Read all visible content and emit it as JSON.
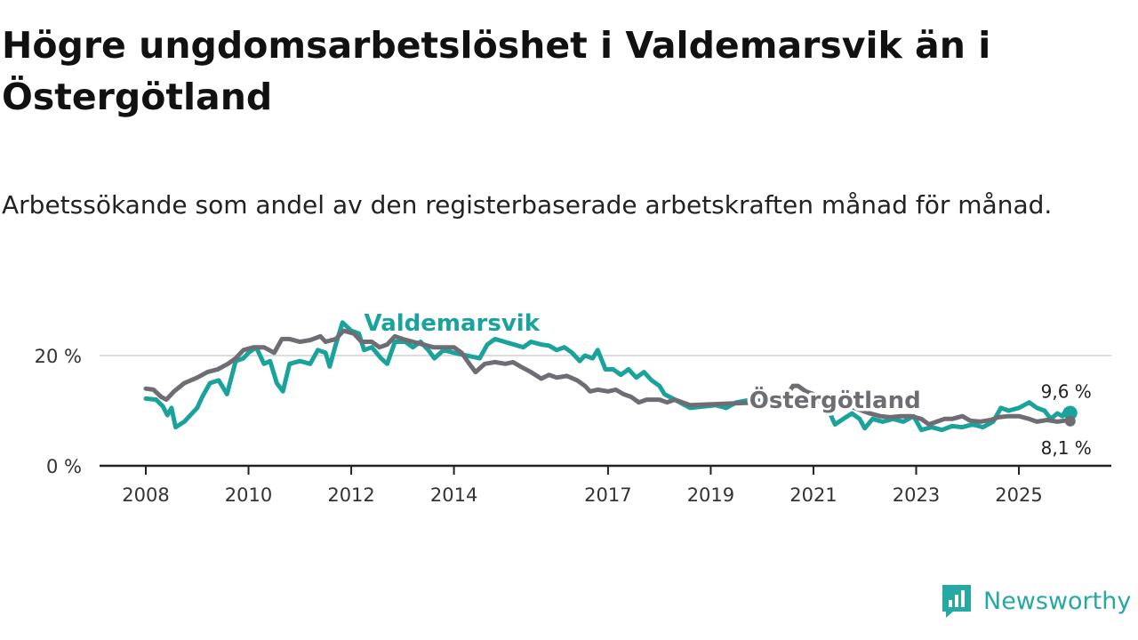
{
  "title": "Högre ungdomsarbetslöshet i Valdemarsvik än i Östergötland",
  "subtitle": "Arbetssökande som andel av den registerbaserade arbetskraften månad för månad.",
  "brand": {
    "name": "Newsworthy",
    "icon": "newsworthy-logo-icon"
  },
  "colors": {
    "valdemarsvik": "#1aa39c",
    "ostergotland": "#6e6d73",
    "axis": "#222222",
    "grid": "#dddddd"
  },
  "chart_data": {
    "type": "line",
    "title": "Högre ungdomsarbetslöshet i Valdemarsvik än i Östergötland",
    "xlabel": "",
    "ylabel": "",
    "xlim": [
      2008.0,
      2026.8
    ],
    "ylim": [
      0,
      30
    ],
    "y_ticks": [
      {
        "value": 0,
        "label": "0 %"
      },
      {
        "value": 20,
        "label": "20 %"
      }
    ],
    "x_ticks": [
      {
        "value": 2008,
        "label": "2008"
      },
      {
        "value": 2010,
        "label": "2010"
      },
      {
        "value": 2012,
        "label": "2012"
      },
      {
        "value": 2014,
        "label": "2014"
      },
      {
        "value": 2017,
        "label": "2017"
      },
      {
        "value": 2019,
        "label": "2019"
      },
      {
        "value": 2021,
        "label": "2021"
      },
      {
        "value": 2023,
        "label": "2023"
      },
      {
        "value": 2025,
        "label": "2025"
      }
    ],
    "grid": "horizontal",
    "series": [
      {
        "name": "Valdemarsvik",
        "color": "#1aa39c",
        "label_x": 2012.25,
        "label_y": 24.5,
        "end_label": "9,6 %",
        "points": [
          [
            2008.0,
            12.2
          ],
          [
            2008.2,
            12.0
          ],
          [
            2008.33,
            10.8
          ],
          [
            2008.42,
            9.2
          ],
          [
            2008.5,
            10.5
          ],
          [
            2008.58,
            7.0
          ],
          [
            2008.75,
            8.0
          ],
          [
            2008.9,
            9.5
          ],
          [
            2009.0,
            10.5
          ],
          [
            2009.1,
            12.5
          ],
          [
            2009.25,
            15.0
          ],
          [
            2009.42,
            15.5
          ],
          [
            2009.58,
            13.0
          ],
          [
            2009.75,
            19.0
          ],
          [
            2009.9,
            19.5
          ],
          [
            2010.0,
            20.5
          ],
          [
            2010.15,
            21.5
          ],
          [
            2010.3,
            18.5
          ],
          [
            2010.42,
            19.0
          ],
          [
            2010.55,
            15.0
          ],
          [
            2010.67,
            13.5
          ],
          [
            2010.8,
            18.5
          ],
          [
            2011.0,
            19.0
          ],
          [
            2011.2,
            18.5
          ],
          [
            2011.35,
            21.0
          ],
          [
            2011.5,
            20.5
          ],
          [
            2011.58,
            18.0
          ],
          [
            2011.7,
            22.0
          ],
          [
            2011.83,
            26.0
          ],
          [
            2012.0,
            24.5
          ],
          [
            2012.15,
            24.0
          ],
          [
            2012.25,
            21.0
          ],
          [
            2012.4,
            21.5
          ],
          [
            2012.58,
            19.5
          ],
          [
            2012.7,
            18.5
          ],
          [
            2012.85,
            22.5
          ],
          [
            2013.05,
            22.5
          ],
          [
            2013.2,
            21.5
          ],
          [
            2013.35,
            22.5
          ],
          [
            2013.5,
            21.0
          ],
          [
            2013.62,
            19.5
          ],
          [
            2013.8,
            21.0
          ],
          [
            2014.0,
            20.5
          ],
          [
            2014.5,
            19.5
          ],
          [
            2014.65,
            22.0
          ],
          [
            2014.8,
            23.0
          ],
          [
            2015.35,
            21.5
          ],
          [
            2015.5,
            22.5
          ],
          [
            2015.7,
            22.0
          ],
          [
            2015.85,
            21.8
          ],
          [
            2016.0,
            21.0
          ],
          [
            2016.15,
            21.5
          ],
          [
            2016.3,
            20.5
          ],
          [
            2016.45,
            19.0
          ],
          [
            2016.55,
            20.0
          ],
          [
            2016.7,
            19.5
          ],
          [
            2016.8,
            21.0
          ],
          [
            2016.95,
            17.5
          ],
          [
            2017.1,
            17.5
          ],
          [
            2017.25,
            16.5
          ],
          [
            2017.4,
            17.5
          ],
          [
            2017.55,
            16.0
          ],
          [
            2017.7,
            17.0
          ],
          [
            2017.85,
            15.5
          ],
          [
            2018.0,
            14.5
          ],
          [
            2018.1,
            13.0
          ],
          [
            2018.6,
            10.5
          ],
          [
            2019.1,
            11.0
          ],
          [
            2019.3,
            10.5
          ],
          [
            2019.5,
            11.5
          ],
          [
            2019.8,
            12.0
          ],
          [
            2020.2,
            11.5
          ],
          [
            2020.5,
            12.0
          ],
          [
            2020.9,
            11.0
          ],
          [
            2021.2,
            12.0
          ],
          [
            2021.42,
            7.5
          ],
          [
            2021.58,
            8.5
          ],
          [
            2021.75,
            9.5
          ],
          [
            2021.9,
            8.5
          ],
          [
            2022.0,
            6.8
          ],
          [
            2022.15,
            8.5
          ],
          [
            2022.35,
            8.0
          ],
          [
            2022.55,
            8.5
          ],
          [
            2022.75,
            8.0
          ],
          [
            2022.95,
            9.0
          ],
          [
            2023.1,
            6.5
          ],
          [
            2023.3,
            7.0
          ],
          [
            2023.5,
            6.5
          ],
          [
            2023.7,
            7.2
          ],
          [
            2023.9,
            7.0
          ],
          [
            2024.1,
            7.5
          ],
          [
            2024.3,
            7.0
          ],
          [
            2024.5,
            8.0
          ],
          [
            2024.65,
            10.5
          ],
          [
            2024.8,
            10.0
          ],
          [
            2025.0,
            10.5
          ],
          [
            2025.2,
            11.5
          ],
          [
            2025.35,
            10.5
          ],
          [
            2025.5,
            10.0
          ],
          [
            2025.62,
            8.5
          ],
          [
            2025.75,
            9.5
          ],
          [
            2025.85,
            9.0
          ],
          [
            2025.92,
            10.2
          ],
          [
            2026.0,
            9.6
          ]
        ]
      },
      {
        "name": "Östergötland",
        "color": "#6e6d73",
        "label_x": 2019.75,
        "label_y": 10.5,
        "end_label": "8,1 %",
        "points": [
          [
            2008.0,
            14.0
          ],
          [
            2008.15,
            13.8
          ],
          [
            2008.3,
            12.5
          ],
          [
            2008.4,
            12.0
          ],
          [
            2008.55,
            13.5
          ],
          [
            2008.75,
            15.0
          ],
          [
            2009.0,
            16.0
          ],
          [
            2009.2,
            17.0
          ],
          [
            2009.4,
            17.5
          ],
          [
            2009.6,
            18.5
          ],
          [
            2009.75,
            19.5
          ],
          [
            2009.9,
            21.0
          ],
          [
            2010.1,
            21.5
          ],
          [
            2010.3,
            21.5
          ],
          [
            2010.5,
            20.5
          ],
          [
            2010.65,
            23.0
          ],
          [
            2010.8,
            23.0
          ],
          [
            2011.0,
            22.5
          ],
          [
            2011.2,
            22.8
          ],
          [
            2011.4,
            23.5
          ],
          [
            2011.5,
            22.5
          ],
          [
            2011.7,
            23.0
          ],
          [
            2011.85,
            24.5
          ],
          [
            2012.05,
            24.0
          ],
          [
            2012.2,
            22.5
          ],
          [
            2012.4,
            22.5
          ],
          [
            2012.55,
            21.5
          ],
          [
            2012.7,
            22.0
          ],
          [
            2012.85,
            23.5
          ],
          [
            2013.0,
            23.0
          ],
          [
            2013.2,
            22.5
          ],
          [
            2013.4,
            22.0
          ],
          [
            2013.6,
            21.5
          ],
          [
            2013.8,
            21.5
          ],
          [
            2014.0,
            21.5
          ],
          [
            2014.15,
            20.5
          ],
          [
            2014.3,
            18.5
          ],
          [
            2014.42,
            17.0
          ],
          [
            2014.6,
            18.5
          ],
          [
            2014.8,
            18.8
          ],
          [
            2015.0,
            18.5
          ],
          [
            2015.15,
            18.8
          ],
          [
            2015.3,
            18.0
          ],
          [
            2015.5,
            17.0
          ],
          [
            2015.7,
            15.8
          ],
          [
            2015.85,
            16.5
          ],
          [
            2016.0,
            16.0
          ],
          [
            2016.2,
            16.3
          ],
          [
            2016.4,
            15.5
          ],
          [
            2016.55,
            14.5
          ],
          [
            2016.65,
            13.5
          ],
          [
            2016.8,
            13.8
          ],
          [
            2017.0,
            13.5
          ],
          [
            2017.15,
            13.8
          ],
          [
            2017.3,
            13.0
          ],
          [
            2017.45,
            12.5
          ],
          [
            2017.6,
            11.5
          ],
          [
            2017.75,
            12.0
          ],
          [
            2018.0,
            12.0
          ],
          [
            2018.15,
            11.5
          ],
          [
            2018.3,
            12.0
          ],
          [
            2018.45,
            11.5
          ],
          [
            2018.6,
            11.0
          ],
          [
            2019.9,
            11.5
          ],
          [
            2020.05,
            12.0
          ],
          [
            2020.2,
            12.0
          ],
          [
            2020.35,
            11.8
          ],
          [
            2020.5,
            13.0
          ],
          [
            2020.6,
            14.5
          ],
          [
            2020.7,
            14.5
          ],
          [
            2020.85,
            13.5
          ],
          [
            2021.0,
            13.0
          ],
          [
            2021.15,
            12.5
          ],
          [
            2021.3,
            12.5
          ],
          [
            2021.5,
            11.5
          ],
          [
            2021.65,
            11.0
          ],
          [
            2021.8,
            10.5
          ],
          [
            2021.95,
            10.0
          ],
          [
            2022.1,
            9.5
          ],
          [
            2022.3,
            9.0
          ],
          [
            2022.5,
            8.8
          ],
          [
            2022.7,
            9.0
          ],
          [
            2022.9,
            9.0
          ],
          [
            2023.1,
            8.5
          ],
          [
            2023.25,
            7.5
          ],
          [
            2023.4,
            8.0
          ],
          [
            2023.55,
            8.5
          ],
          [
            2023.7,
            8.5
          ],
          [
            2023.9,
            9.0
          ],
          [
            2024.05,
            8.2
          ],
          [
            2024.25,
            8.0
          ],
          [
            2024.45,
            8.3
          ],
          [
            2024.6,
            8.8
          ],
          [
            2024.8,
            9.0
          ],
          [
            2025.0,
            9.0
          ],
          [
            2025.2,
            8.5
          ],
          [
            2025.35,
            8.0
          ],
          [
            2025.55,
            8.3
          ],
          [
            2025.75,
            8.0
          ],
          [
            2025.9,
            8.2
          ],
          [
            2026.0,
            8.1
          ]
        ]
      }
    ]
  }
}
